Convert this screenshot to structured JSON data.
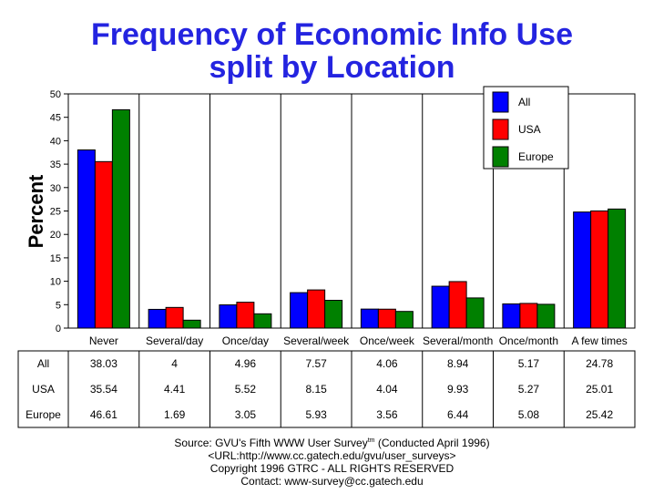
{
  "title": {
    "line1": "Frequency of Economic Info Use",
    "line2": "split by Location"
  },
  "chart_data": {
    "type": "bar",
    "title": "Frequency of Economic Info Use split by Location",
    "ylabel": "Percent",
    "xlabel": "",
    "ylim": [
      0,
      50
    ],
    "yticks": [
      0,
      5,
      10,
      15,
      20,
      25,
      30,
      35,
      40,
      45,
      50
    ],
    "grid": "vertical category separators",
    "legend_position": "top-right",
    "categories": [
      "Never",
      "Several/day",
      "Once/day",
      "Several/week",
      "Once/week",
      "Several/month",
      "Once/month",
      "A few times"
    ],
    "series": [
      {
        "name": "All",
        "color": "#0000ff",
        "values": [
          38.03,
          4,
          4.96,
          7.57,
          4.06,
          8.94,
          5.17,
          24.78
        ],
        "labels": [
          "38.03",
          "4",
          "4.96",
          "7.57",
          "4.06",
          "8.94",
          "5.17",
          "24.78"
        ]
      },
      {
        "name": "USA",
        "color": "#ff0000",
        "values": [
          35.54,
          4.41,
          5.52,
          8.15,
          4.04,
          9.93,
          5.27,
          25.01
        ],
        "labels": [
          "35.54",
          "4.41",
          "5.52",
          "8.15",
          "4.04",
          "9.93",
          "5.27",
          "25.01"
        ]
      },
      {
        "name": "Europe",
        "color": "#008000",
        "values": [
          46.61,
          1.69,
          3.05,
          5.93,
          3.56,
          6.44,
          5.08,
          25.42
        ],
        "labels": [
          "46.61",
          "1.69",
          "3.05",
          "5.93",
          "3.56",
          "6.44",
          "5.08",
          "25.42"
        ]
      }
    ]
  },
  "footer": {
    "source_prefix": "Source: GVU's Fifth WWW User Survey",
    "source_sup": "tm",
    "source_suffix": "  (Conducted April 1996)",
    "url": "<URL:http://www.cc.gatech.edu/gvu/user_surveys>",
    "copyright": "Copyright 1996 GTRC -  ALL RIGHTS RESERVED",
    "contact": "Contact: www-survey@cc.gatech.edu"
  }
}
